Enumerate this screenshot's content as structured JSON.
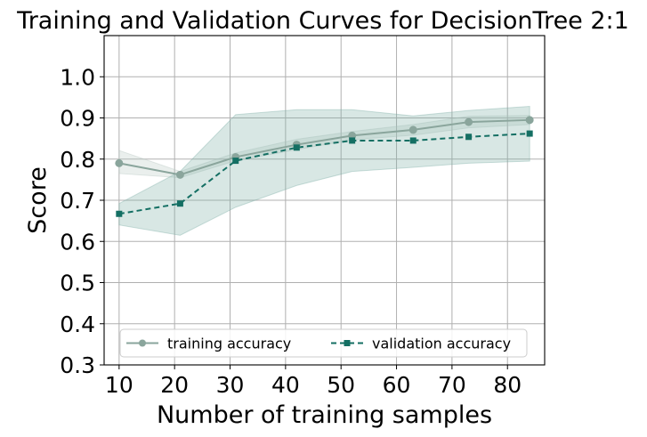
{
  "chart_data": {
    "type": "line",
    "title": "Training and Validation Curves for DecisionTree 2:1",
    "xlabel": "Number of training samples",
    "ylabel": "Score",
    "xlim": [
      7.3,
      86.7
    ],
    "ylim": [
      0.3,
      1.1
    ],
    "x_ticks": [
      10,
      20,
      30,
      40,
      50,
      60,
      70,
      80
    ],
    "x_tick_labels": [
      "10",
      "20",
      "30",
      "40",
      "50",
      "60",
      "70",
      "80"
    ],
    "y_ticks": [
      0.3,
      0.4,
      0.5,
      0.6,
      0.7,
      0.8,
      0.9,
      1.0
    ],
    "y_tick_labels": [
      "0.3",
      "0.4",
      "0.5",
      "0.6",
      "0.7",
      "0.8",
      "0.9",
      "1.0"
    ],
    "grid": true,
    "legend_position": "bottom",
    "x": [
      10,
      21,
      31,
      42,
      52,
      63,
      73,
      84
    ],
    "series": [
      {
        "name": "training accuracy",
        "color": "#8aa59c",
        "marker": "circle",
        "linestyle": "solid",
        "values": [
          0.79,
          0.762,
          0.805,
          0.835,
          0.857,
          0.871,
          0.89,
          0.895
        ],
        "band_upper": [
          0.821,
          0.77,
          0.815,
          0.848,
          0.867,
          0.884,
          0.904,
          0.906
        ],
        "band_lower": [
          0.765,
          0.755,
          0.796,
          0.823,
          0.847,
          0.858,
          0.876,
          0.884
        ],
        "band_color": "#b9c9c4"
      },
      {
        "name": "validation accuracy",
        "color": "#146f63",
        "marker": "square",
        "linestyle": "dashed",
        "values": [
          0.667,
          0.692,
          0.796,
          0.828,
          0.845,
          0.845,
          0.854,
          0.862
        ],
        "band_upper": [
          0.692,
          0.77,
          0.908,
          0.92,
          0.92,
          0.905,
          0.918,
          0.928
        ],
        "band_lower": [
          0.64,
          0.615,
          0.683,
          0.736,
          0.77,
          0.78,
          0.79,
          0.795
        ],
        "band_color": "#7fb0a7"
      }
    ]
  }
}
